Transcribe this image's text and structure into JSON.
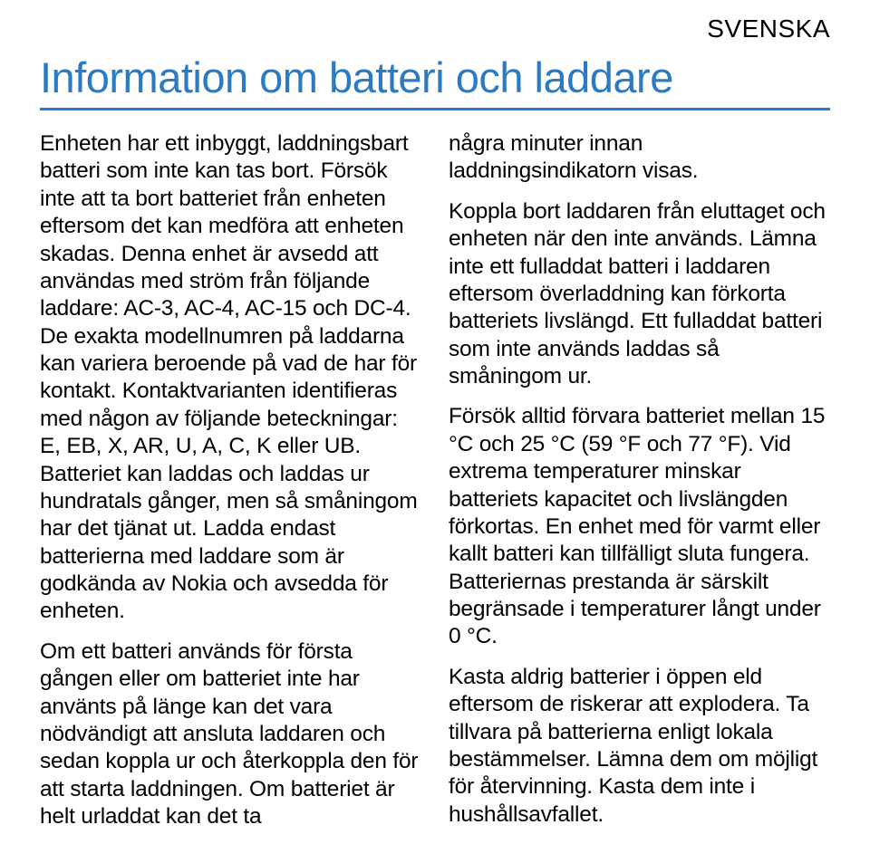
{
  "language_label": "SVENSKA",
  "title": "Information om batteri och laddare",
  "left_column": [
    "Enheten har ett inbyggt, laddningsbart batteri som inte kan tas bort. Försök inte att ta bort batteriet från enheten eftersom det kan medföra att enheten skadas. Denna enhet är avsedd att användas med ström från följande laddare: AC-3, AC-4, AC-15 och DC-4. De exakta modellnumren på laddarna kan variera beroende på vad de har för kontakt. Kontaktvarianten identifieras med någon av följande beteckningar: E, EB, X, AR, U, A, C, K eller UB. Batteriet kan laddas och laddas ur hundratals gånger, men så småningom har det tjänat ut. Ladda endast batterierna med laddare som är godkända av Nokia och avsedda för enheten.",
    "Om ett batteri används för första gången eller om batteriet inte har använts på länge kan det vara nödvändigt att ansluta laddaren och sedan koppla ur och återkoppla den för att starta laddningen. Om batteriet är helt urladdat kan det ta"
  ],
  "right_column": [
    "några minuter innan laddningsindikatorn visas.",
    "Koppla bort laddaren från eluttaget och enheten när den inte används. Lämna inte ett fulladdat batteri i laddaren eftersom överladdning kan förkorta batteriets livslängd. Ett fulladdat batteri som inte används laddas så småningom ur.",
    "Försök alltid förvara batteriet mellan 15 °C och 25 °C (59 °F och 77 °F). Vid extrema temperaturer minskar batteriets kapacitet och livslängden förkortas. En enhet med för varmt eller kallt batteri kan tillfälligt sluta fungera. Batteriernas prestanda är särskilt begränsade i temperaturer långt under 0 °C.",
    "Kasta aldrig batterier i öppen eld eftersom de riskerar att explodera. Ta tillvara på batterierna enligt lokala bestämmelser. Lämna dem om möjligt för återvinning. Kasta dem inte i hushållsavfallet."
  ],
  "colors": {
    "title": "#2a7bc4",
    "text": "#000000",
    "background": "#ffffff"
  },
  "typography": {
    "title_fontsize": 47,
    "body_fontsize": 24.5,
    "lang_fontsize": 28
  }
}
